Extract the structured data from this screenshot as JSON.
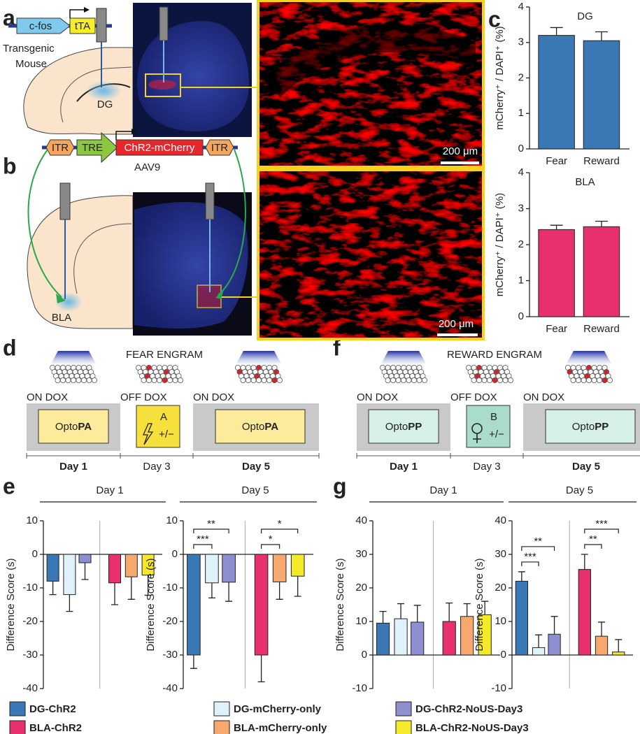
{
  "panels": [
    "a",
    "b",
    "c",
    "d",
    "e",
    "f",
    "g"
  ],
  "panel_a": {
    "promoter": "c-fos",
    "gene": "tTA",
    "mouse": [
      "Transgenic",
      "Mouse"
    ],
    "region": "DG",
    "scale_bar": "200 μm"
  },
  "panel_b": {
    "itr_left": "ITR",
    "promoter": "TRE",
    "gene": "ChR2-mCherry",
    "itr_right": "ITR",
    "vector": "AAV9",
    "region": "BLA",
    "scale_bar": "200 μm"
  },
  "panel_d": {
    "title": "FEAR ENGRAM",
    "dox": [
      "ON DOX",
      "OFF DOX",
      "ON DOX"
    ],
    "box_prefix": "Opto",
    "box_bold": "PA",
    "context": "A",
    "shock": "+/−",
    "days": [
      "Day 1",
      "Day 3",
      "Day 5"
    ]
  },
  "panel_f": {
    "title": "REWARD ENGRAM",
    "dox": [
      "ON DOX",
      "OFF DOX",
      "ON DOX"
    ],
    "box_prefix": "Opto",
    "box_bold": "PP",
    "context": "B",
    "shock": "+/−",
    "days": [
      "Day 1",
      "Day 3",
      "Day 5"
    ]
  },
  "legend": [
    {
      "name": "DG-ChR2",
      "color": "#3a78b5"
    },
    {
      "name": "DG-mCherry-only",
      "color": "#dff2f9"
    },
    {
      "name": "DG-ChR2-NoUS-Day3",
      "color": "#8e8fd1"
    },
    {
      "name": "BLA-ChR2",
      "color": "#e8306e"
    },
    {
      "name": "BLA-mCherry-only",
      "color": "#f7a86f"
    },
    {
      "name": "BLA-ChR2-NoUS-Day3",
      "color": "#f4ea2a"
    }
  ],
  "chart_data": [
    {
      "type": "bar",
      "title": "DG",
      "categories": [
        "Fear",
        "Reward"
      ],
      "values": [
        3.2,
        3.05
      ],
      "errors": [
        0.22,
        0.25
      ],
      "color": "#3a78b5",
      "y_label": "mCherry⁺ / DAPI⁺ (%)",
      "ylim": [
        0,
        4
      ],
      "yticks": [
        0,
        1,
        2,
        3,
        4
      ]
    },
    {
      "type": "bar",
      "title": "BLA",
      "categories": [
        "Fear",
        "Reward"
      ],
      "values": [
        2.42,
        2.5
      ],
      "errors": [
        0.12,
        0.15
      ],
      "color": "#e8306e",
      "y_label": "mCherry⁺ / DAPI⁺ (%)",
      "ylim": [
        0,
        4
      ],
      "yticks": [
        0,
        1,
        2,
        3,
        4
      ]
    },
    {
      "type": "groupbar",
      "title": "Day 1",
      "y_label": "Difference Score (s)",
      "values": [
        -8,
        -12,
        -2.5,
        -8.5,
        -6.7,
        -6.2
      ],
      "errors": [
        4,
        5,
        5,
        6.5,
        6.7,
        6
      ],
      "ylim": [
        -40,
        10
      ],
      "yticks": [
        -40,
        -30,
        -20,
        -10,
        0,
        10
      ]
    },
    {
      "type": "groupbar",
      "title": "Day 5",
      "y_label": "Difference Score (s)",
      "values": [
        -30,
        -8.5,
        -8.3,
        -30,
        -8.2,
        -6.5
      ],
      "errors": [
        4,
        4.5,
        5.7,
        8,
        5.2,
        6
      ],
      "ylim": [
        -40,
        10
      ],
      "yticks": [
        -40,
        -30,
        -20,
        -10,
        0,
        10
      ],
      "significance": [
        "***",
        "**",
        "*",
        "*"
      ]
    },
    {
      "type": "groupbar",
      "title": "Day 1",
      "y_label": "Difference Score (s)",
      "values": [
        9.5,
        10.8,
        9.8,
        10,
        11.5,
        12
      ],
      "errors": [
        3.5,
        4.5,
        5,
        5.5,
        3.8,
        4
      ],
      "ylim": [
        -10,
        40
      ],
      "yticks": [
        -10,
        0,
        10,
        20,
        30,
        40
      ]
    },
    {
      "type": "groupbar",
      "title": "Day 5",
      "y_label": "Difference Score (s)",
      "values": [
        22,
        2.2,
        6.2,
        25.5,
        5.6,
        0.9
      ],
      "errors": [
        2.8,
        3.8,
        5.3,
        4.5,
        4.2,
        3.7
      ],
      "ylim": [
        -10,
        40
      ],
      "yticks": [
        -10,
        0,
        10,
        20,
        30,
        40
      ],
      "significance": [
        "***",
        "**",
        "**",
        "***"
      ]
    }
  ]
}
